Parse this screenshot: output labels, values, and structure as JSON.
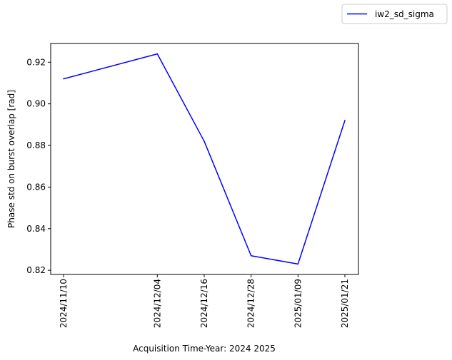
{
  "chart_data": {
    "type": "line",
    "title": "",
    "xlabel": "Acquisition Time-Year: 2024 2025",
    "ylabel": "Phase std on burst overlap [rad]",
    "x": [
      "2024/11/10",
      "2024/12/04",
      "2024/12/16",
      "2024/12/28",
      "2025/01/09",
      "2025/01/21"
    ],
    "series": [
      {
        "name": "iw2_sd_sigma",
        "color": "#0000ff",
        "values": [
          0.912,
          0.924,
          0.882,
          0.827,
          0.823,
          0.892
        ]
      }
    ],
    "ylim": [
      0.818,
      0.929
    ],
    "yticks": [
      "0.82",
      "0.84",
      "0.86",
      "0.88",
      "0.90",
      "0.92"
    ],
    "grid": false,
    "legend": "upper-right-outside"
  }
}
